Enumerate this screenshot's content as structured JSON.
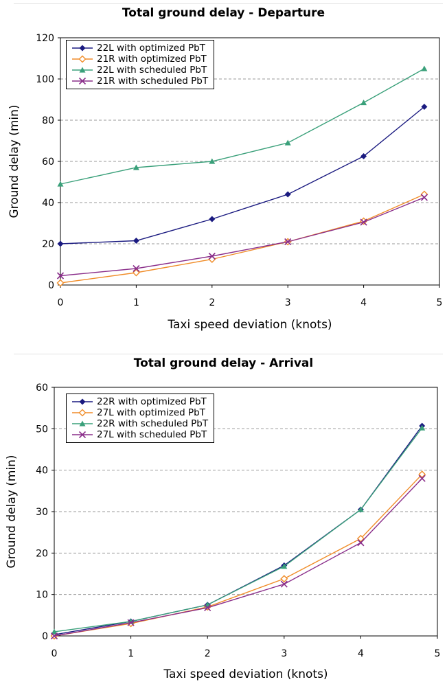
{
  "chart_data": [
    {
      "type": "line",
      "title": "Total ground delay - Departure",
      "xlabel": "Taxi speed deviation (knots)",
      "ylabel": "Ground delay (min)",
      "xlim": [
        0,
        5
      ],
      "ylim": [
        0,
        120
      ],
      "xticks": [
        0,
        1,
        2,
        3,
        4,
        5
      ],
      "yticks": [
        0,
        20,
        40,
        60,
        80,
        100,
        120
      ],
      "grid": "horizontal-dashed",
      "legend_position": "top-left",
      "x": [
        0,
        1,
        2,
        3,
        4,
        4.8
      ],
      "series": [
        {
          "name": "22L with optimized PbT",
          "marker": "diamond",
          "color": "#1a1a80",
          "values": [
            20,
            21.5,
            32,
            44,
            62.5,
            86.5
          ]
        },
        {
          "name": "21R with optimized PbT",
          "marker": "diamond-open",
          "color": "#f08c28",
          "values": [
            1,
            6,
            12.5,
            21,
            31,
            44
          ]
        },
        {
          "name": "22L with scheduled PbT",
          "marker": "triangle",
          "color": "#3aa07a",
          "values": [
            49,
            57,
            60,
            69,
            88.5,
            105
          ]
        },
        {
          "name": "21R with scheduled PbT",
          "marker": "x",
          "color": "#8a2e8a",
          "values": [
            4.5,
            8,
            14,
            21,
            30.5,
            42.5
          ]
        }
      ]
    },
    {
      "type": "line",
      "title": "Total ground delay - Arrival",
      "xlabel": "Taxi speed deviation (knots)",
      "ylabel": "Ground delay (min)",
      "xlim": [
        0,
        5
      ],
      "ylim": [
        0,
        60
      ],
      "xticks": [
        0,
        1,
        2,
        3,
        4,
        5
      ],
      "yticks": [
        0,
        10,
        20,
        30,
        40,
        50,
        60
      ],
      "grid": "horizontal-dashed",
      "legend_position": "top-left",
      "x": [
        0,
        1,
        2,
        3,
        4,
        4.8
      ],
      "series": [
        {
          "name": "22R with optimized PbT",
          "marker": "diamond",
          "color": "#1a1a80",
          "values": [
            0.3,
            3.5,
            7.5,
            17,
            30.5,
            50.7
          ]
        },
        {
          "name": "27L with optimized PbT",
          "marker": "diamond-open",
          "color": "#f08c28",
          "values": [
            0,
            3,
            7,
            13.8,
            23.5,
            39
          ]
        },
        {
          "name": "22R with scheduled PbT",
          "marker": "triangle",
          "color": "#3aa07a",
          "values": [
            1,
            3.5,
            7.5,
            16.8,
            30.5,
            50.2
          ]
        },
        {
          "name": "27L with scheduled PbT",
          "marker": "x",
          "color": "#8a2e8a",
          "values": [
            0,
            3.2,
            6.8,
            12.5,
            22.5,
            38
          ]
        }
      ]
    }
  ]
}
